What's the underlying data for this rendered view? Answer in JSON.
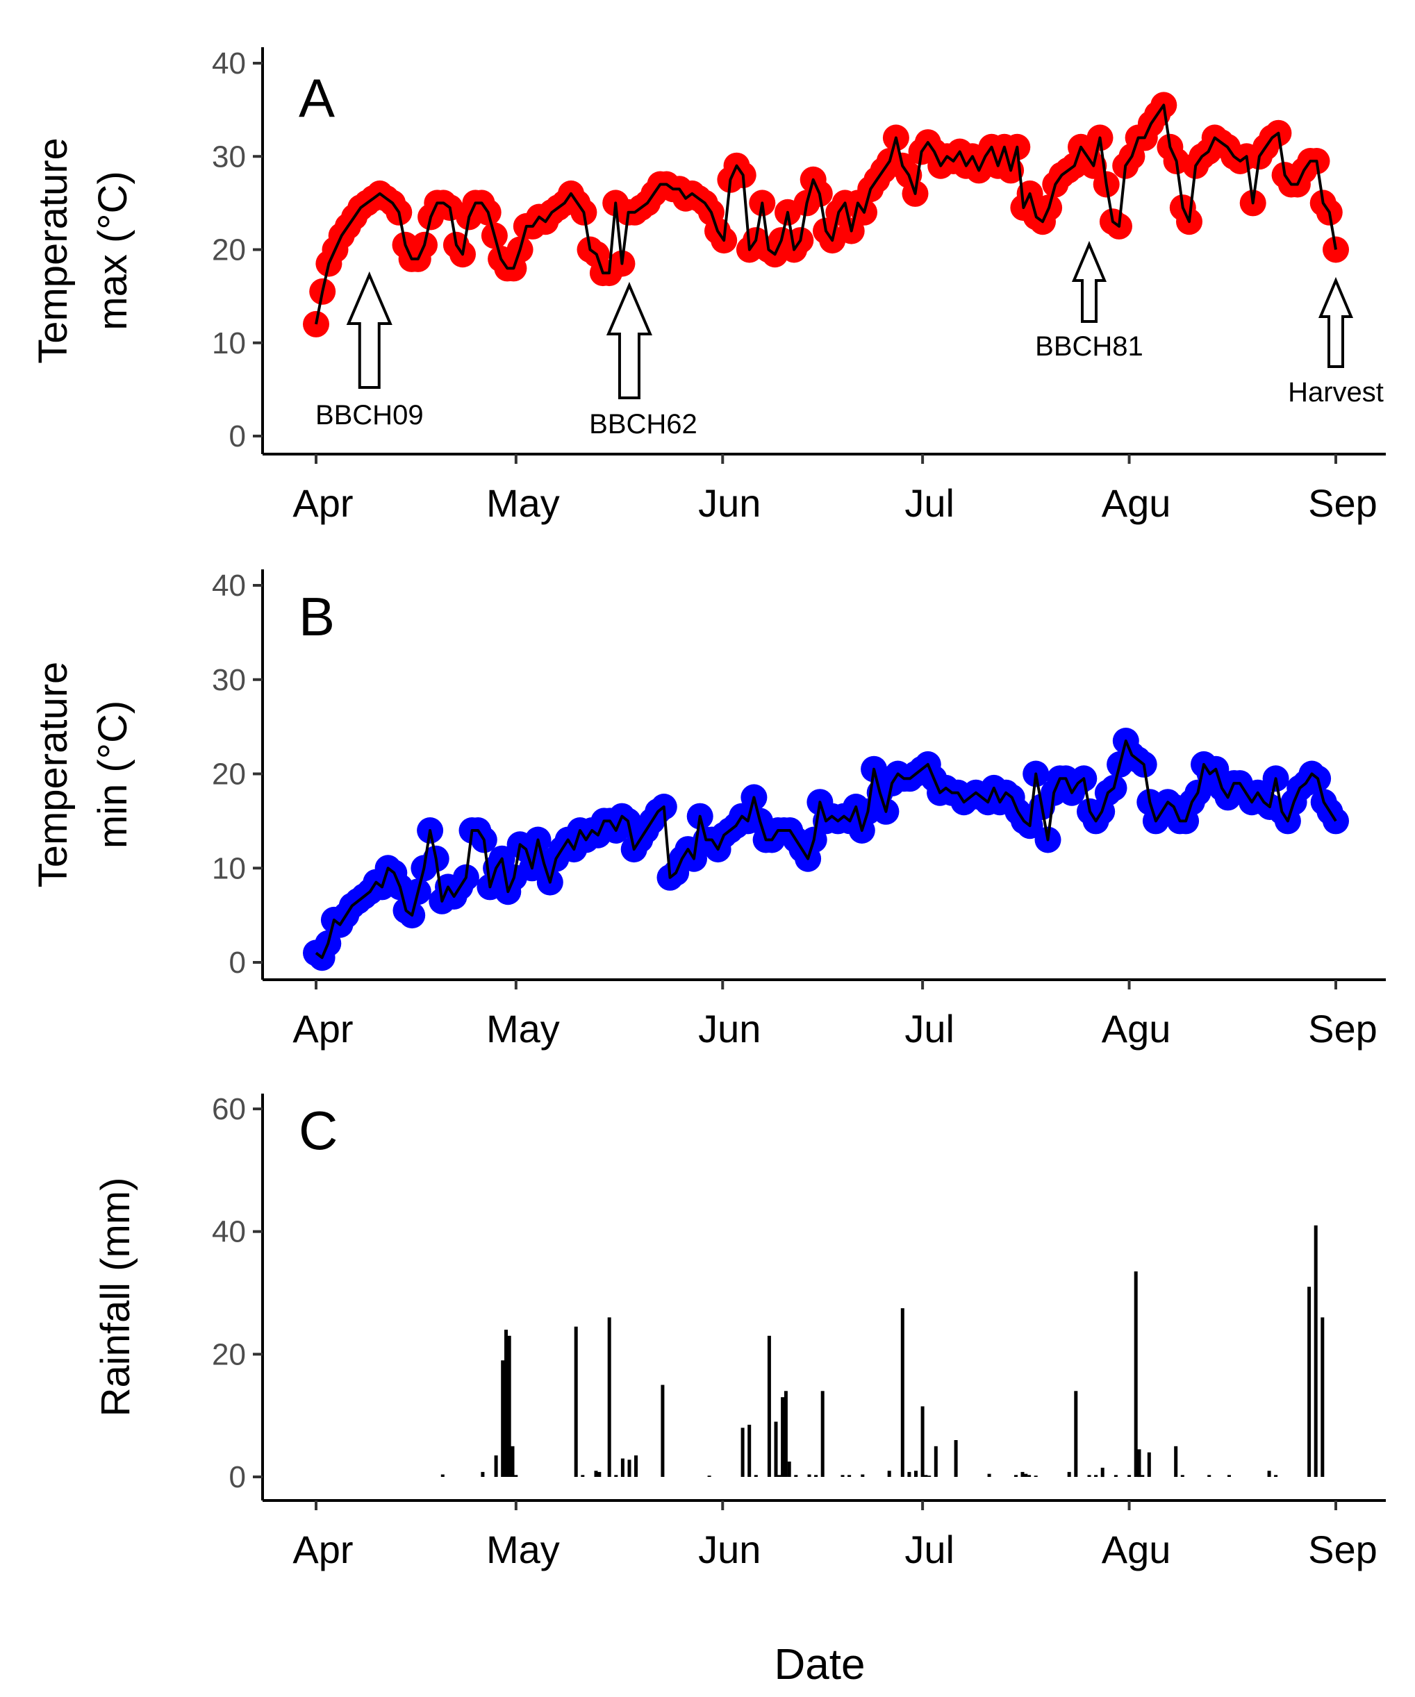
{
  "chart_data": [
    {
      "type": "line",
      "panel": "A",
      "ylabel_lines": [
        "Temperature",
        "max (°C)"
      ],
      "ylim": [
        0,
        40
      ],
      "yticks": [
        "0",
        "10",
        "20",
        "30",
        "40"
      ],
      "xticks": [
        "Apr",
        "May",
        "Jun",
        "Jul",
        "Agu",
        "Sep"
      ],
      "xlim_days": [
        0,
        153
      ],
      "xtick_days": [
        0,
        30,
        61,
        91,
        122,
        153
      ],
      "marker_color": "#ff0000",
      "line_color": "#000000",
      "series": [
        {
          "name": "Temperature max",
          "values": [
            12,
            15.5,
            18.5,
            20,
            21.5,
            22.5,
            23.5,
            24.5,
            25,
            25.5,
            26,
            25.5,
            25,
            24,
            20.5,
            19,
            19,
            20.5,
            23.5,
            25,
            25,
            24.5,
            20.5,
            19.5,
            23.5,
            25,
            25,
            24,
            21.5,
            19,
            18,
            18,
            20,
            22.5,
            22.5,
            23.5,
            23,
            24,
            24.5,
            25,
            26,
            25,
            24,
            20,
            19.5,
            17.5,
            17.5,
            25,
            18.5,
            24,
            24,
            24.5,
            25,
            26,
            27,
            27,
            26.5,
            26.5,
            25.5,
            26,
            25.5,
            25,
            24,
            22,
            21,
            27.5,
            29,
            28,
            20,
            21,
            25,
            20,
            19.5,
            21,
            24,
            20,
            21,
            25,
            27.5,
            26,
            22,
            21,
            24,
            25,
            22,
            25,
            24,
            26.5,
            27.5,
            28.5,
            29.5,
            32,
            29,
            28,
            26,
            30.5,
            31.5,
            30.5,
            29,
            30,
            29.5,
            30.5,
            29,
            30,
            28.5,
            30,
            31,
            29,
            31,
            28.5,
            31,
            24.5,
            26,
            23.5,
            23,
            24.5,
            27,
            28,
            28.5,
            29,
            31,
            30,
            29,
            32,
            27,
            23,
            22.5,
            29,
            30,
            32,
            32,
            33.5,
            34.5,
            35.5,
            31,
            29.5,
            24.5,
            23,
            29,
            30,
            30.5,
            32,
            31.5,
            31,
            30,
            29.5,
            30,
            25,
            30,
            31,
            32,
            32.5,
            28,
            27,
            27,
            28.5,
            29.5,
            29.5,
            25,
            24,
            20
          ]
        }
      ],
      "annotations": [
        {
          "label": "BBCH09",
          "day": 8
        },
        {
          "label": "BBCH62",
          "day": 47
        },
        {
          "label": "BBCH81",
          "day": 116
        },
        {
          "label": "Harvest",
          "day": 153
        }
      ]
    },
    {
      "type": "line",
      "panel": "B",
      "ylabel_lines": [
        "Temperature",
        "min (°C)"
      ],
      "ylim": [
        0,
        40
      ],
      "yticks": [
        "0",
        "10",
        "20",
        "30",
        "40"
      ],
      "xticks": [
        "Apr",
        "May",
        "Jun",
        "Jul",
        "Agu",
        "Sep"
      ],
      "xlim_days": [
        0,
        153
      ],
      "xtick_days": [
        0,
        30,
        61,
        91,
        122,
        153
      ],
      "marker_color": "#0000ff",
      "line_color": "#000000",
      "series": [
        {
          "name": "Temperature min",
          "values": [
            1,
            0.5,
            2,
            4.5,
            4,
            5,
            6,
            6.5,
            7,
            7.5,
            8.5,
            8,
            10,
            9.5,
            8,
            5.5,
            5,
            7.5,
            10,
            14,
            11,
            6.5,
            8,
            7,
            8,
            9,
            14,
            14,
            13,
            8,
            10,
            11,
            7.5,
            9,
            12.5,
            12,
            10,
            13,
            10.5,
            8.5,
            11,
            12,
            13,
            12,
            14,
            13,
            14,
            13.5,
            15,
            15,
            14,
            15.5,
            15,
            12,
            13,
            14,
            15,
            16,
            16.5,
            9,
            9.5,
            11,
            12,
            11,
            15.5,
            13,
            13,
            12,
            13.5,
            14,
            14.5,
            15.5,
            15,
            17.5,
            15,
            13,
            13,
            14,
            14,
            14,
            13,
            12,
            11,
            13,
            17,
            15,
            15.5,
            15,
            15.5,
            15,
            16.5,
            14,
            16,
            20.5,
            18,
            16,
            19,
            20,
            19.5,
            19.5,
            20,
            20.5,
            21,
            19.5,
            18,
            18.5,
            18,
            18,
            17,
            17.5,
            18,
            17.5,
            17,
            18.5,
            17,
            18,
            17.5,
            16,
            15,
            14.5,
            20,
            16.5,
            13,
            18,
            19.5,
            19.5,
            18,
            19,
            19.5,
            16,
            15,
            16,
            18,
            18.5,
            21,
            23.5,
            22,
            21.5,
            21,
            17,
            15,
            16,
            17,
            16.5,
            15,
            15,
            17,
            18,
            21,
            20,
            20.5,
            18.5,
            17.5,
            19,
            19,
            18,
            17,
            18,
            17,
            16.5,
            19.5,
            16,
            15,
            17,
            18.5,
            19,
            20,
            19.5,
            17,
            16,
            15
          ]
        }
      ]
    },
    {
      "type": "bar",
      "panel": "C",
      "ylabel_lines": [
        "Rainfall (mm)"
      ],
      "ylim": [
        0,
        60
      ],
      "yticks": [
        "0",
        "20",
        "40",
        "60"
      ],
      "xticks": [
        "Apr",
        "May",
        "Jun",
        "Jul",
        "Agu",
        "Sep"
      ],
      "xlim_days": [
        0,
        153
      ],
      "xtick_days": [
        0,
        30,
        61,
        91,
        122,
        153
      ],
      "xlabel": "Date",
      "bar_color": "#000000",
      "series": [
        {
          "name": "Rainfall",
          "days": [
            19,
            25,
            27,
            28,
            28.5,
            29,
            29.5,
            30,
            39,
            40,
            42,
            42.5,
            44,
            45,
            46,
            47,
            48,
            52,
            59,
            64,
            65,
            66,
            68,
            69,
            69.5,
            70,
            70.5,
            71,
            72,
            74,
            75,
            76,
            79,
            80,
            82,
            86,
            88,
            89,
            90,
            91,
            91.5,
            92,
            93,
            96,
            101,
            105,
            106,
            106.5,
            107,
            108,
            113,
            114,
            116,
            117,
            118,
            120,
            122,
            123,
            123.5,
            124,
            125,
            129,
            130,
            134,
            137,
            143,
            144,
            149,
            150,
            151
          ],
          "values": [
            0.4,
            0.8,
            3.5,
            19,
            24,
            23,
            5,
            0.3,
            24.5,
            0.3,
            1,
            0.8,
            26,
            0.3,
            3,
            2.8,
            3.5,
            15,
            0.2,
            8,
            8.5,
            0.3,
            23,
            9,
            0.3,
            13,
            14,
            2.5,
            0.3,
            0.4,
            0.3,
            14,
            0.3,
            0.3,
            0.4,
            1,
            27.5,
            0.8,
            1,
            11.5,
            0.3,
            0.2,
            5,
            6,
            0.5,
            0.3,
            0.8,
            0.5,
            0.3,
            0.2,
            0.8,
            14,
            0.3,
            0.3,
            1.5,
            0.3,
            0.3,
            33.5,
            4.5,
            0.3,
            4,
            5,
            0.3,
            0.3,
            0.3,
            1,
            0.3,
            31,
            41,
            26
          ]
        }
      ]
    }
  ]
}
